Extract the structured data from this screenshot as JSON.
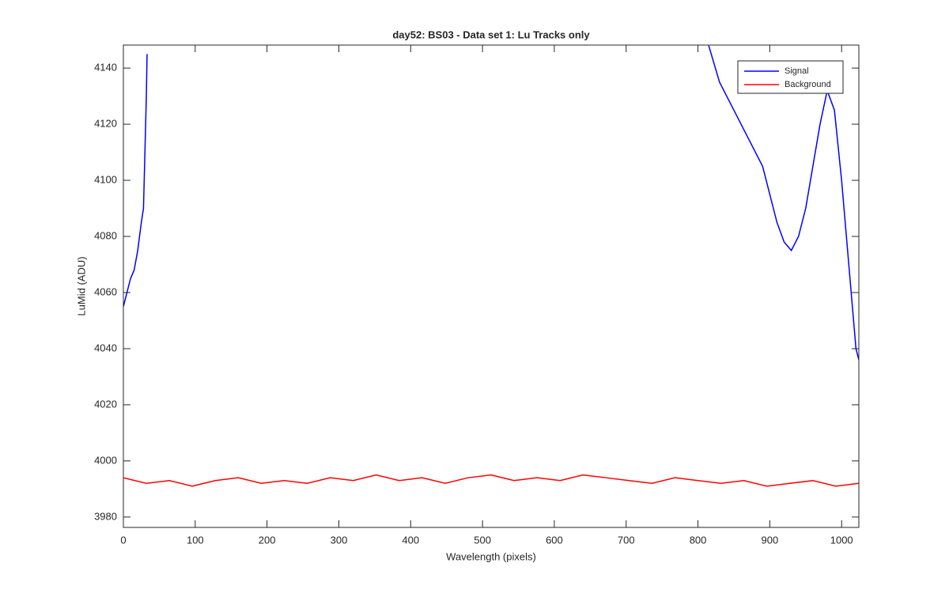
{
  "chart_data": {
    "type": "line",
    "title": "day52: BS03 - Data set 1: Lu Tracks only",
    "x_label": "Wavelength (pixels)",
    "y_label": "LuMid (ADU)",
    "xlim": [
      0,
      1024
    ],
    "ylim": [
      3976.3,
      4148.2
    ],
    "xticks": [
      0,
      100,
      200,
      300,
      400,
      500,
      600,
      700,
      800,
      900,
      1000
    ],
    "yticks": [
      3980,
      4000,
      4020,
      4040,
      4060,
      4080,
      4100,
      4120,
      4140
    ],
    "legend": "upper-right",
    "series": [
      {
        "name": "Signal",
        "color": "#0000ff",
        "x": [
          0,
          5,
          10,
          15,
          20,
          25,
          28,
          30,
          32,
          33,
          500,
          815,
          830,
          850,
          870,
          890,
          900,
          910,
          920,
          930,
          940,
          950,
          960,
          970,
          980,
          990,
          1000,
          1010,
          1020,
          1024
        ],
        "values": [
          4055,
          4060,
          4065,
          4068,
          4075,
          4085,
          4090,
          4110,
          4130,
          4145,
          null,
          4148,
          4135,
          4125,
          4115,
          4105,
          4095,
          4085,
          4078,
          4075,
          4080,
          4090,
          4105,
          4120,
          4132,
          4125,
          4100,
          4070,
          4040,
          4036
        ]
      },
      {
        "name": "Background",
        "color": "#ff0000",
        "x": [
          0,
          32,
          64,
          96,
          128,
          160,
          192,
          224,
          256,
          288,
          320,
          352,
          384,
          416,
          448,
          480,
          512,
          544,
          576,
          608,
          640,
          672,
          704,
          736,
          768,
          800,
          832,
          864,
          896,
          928,
          960,
          992,
          1024
        ],
        "values": [
          3994,
          3992,
          3993,
          3991,
          3993,
          3994,
          3992,
          3993,
          3992,
          3994,
          3993,
          3995,
          3993,
          3994,
          3992,
          3994,
          3995,
          3993,
          3994,
          3993,
          3995,
          3994,
          3993,
          3992,
          3994,
          3993,
          3992,
          3993,
          3991,
          3992,
          3993,
          3991,
          3992
        ]
      }
    ]
  }
}
